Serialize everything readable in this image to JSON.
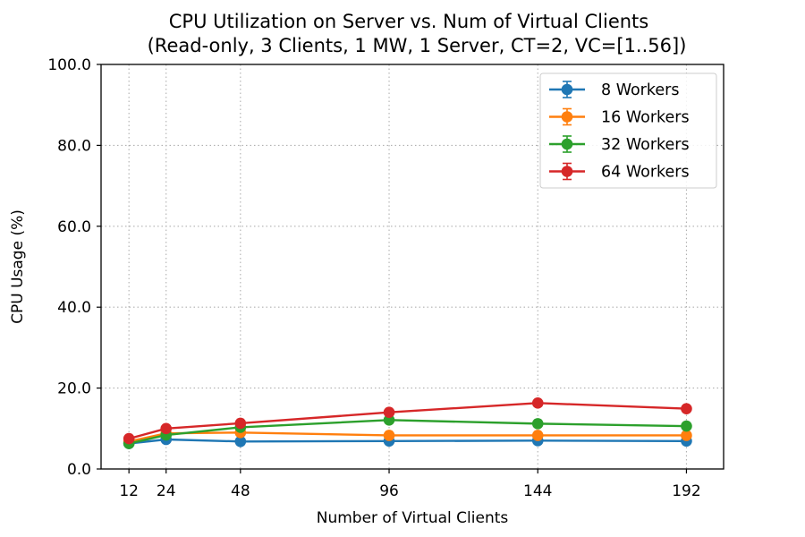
{
  "chart_data": {
    "type": "line",
    "title": [
      "CPU Utilization on Server vs. Num of Virtual Clients",
      "(Read-only, 3 Clients, 1 MW, 1 Server, CT=2, VC=[1..56])"
    ],
    "xlabel": "Number of Virtual Clients",
    "ylabel": "CPU Usage (%)",
    "x": [
      12,
      24,
      48,
      96,
      144,
      192
    ],
    "x_tick_labels": [
      "12",
      "24",
      "48",
      "96",
      "144",
      "192"
    ],
    "xlim": [
      3,
      204
    ],
    "ylim": [
      0,
      100
    ],
    "y_ticks": [
      0,
      20,
      40,
      60,
      80,
      100
    ],
    "y_tick_labels": [
      "0.0",
      "20.0",
      "40.0",
      "60.0",
      "80.0",
      "100.0"
    ],
    "grid": true,
    "legend_position": "top-right",
    "series": [
      {
        "name": "8 Workers",
        "color": "#1f77b4",
        "values": [
          6.3,
          7.3,
          6.8,
          6.9,
          7.0,
          6.9
        ]
      },
      {
        "name": "16 Workers",
        "color": "#ff7f0e",
        "values": [
          6.8,
          8.8,
          9.0,
          8.3,
          8.3,
          8.3
        ]
      },
      {
        "name": "32 Workers",
        "color": "#2ca02c",
        "values": [
          6.3,
          8.4,
          10.3,
          12.1,
          11.2,
          10.6
        ]
      },
      {
        "name": "64 Workers",
        "color": "#d62728",
        "values": [
          7.5,
          10.0,
          11.3,
          14.0,
          16.3,
          14.9
        ]
      }
    ]
  }
}
